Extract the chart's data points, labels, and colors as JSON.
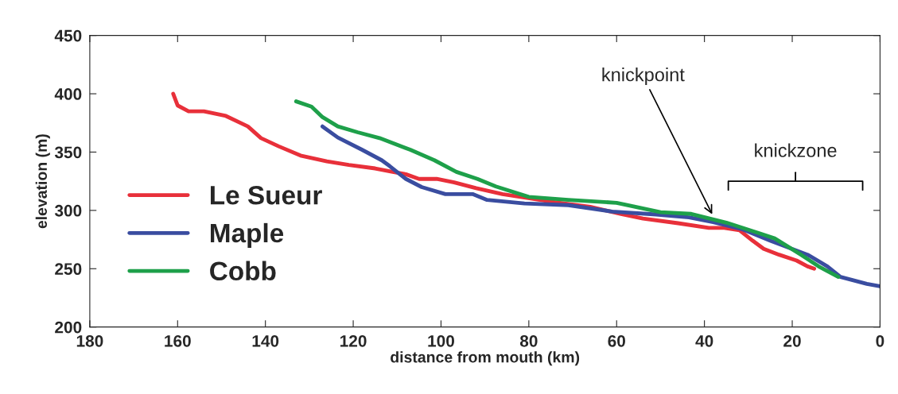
{
  "chart_data": {
    "type": "line",
    "xlabel": "distance from mouth (km)",
    "ylabel": "elevation (m)",
    "xlim": [
      180,
      0
    ],
    "ylim": [
      200,
      450
    ],
    "xticks": [
      180,
      160,
      140,
      120,
      100,
      80,
      60,
      40,
      20,
      0
    ],
    "yticks": [
      200,
      250,
      300,
      350,
      400,
      450
    ],
    "grid": false,
    "legend": "bottom left",
    "marker": "none",
    "line_style": "solid",
    "series": [
      {
        "name": "Le Sueur",
        "color": "#e8303a",
        "x": [
          161,
          160,
          157.5,
          154,
          149,
          144,
          141,
          137,
          132,
          126,
          121,
          115,
          111,
          108,
          105,
          101,
          97,
          92,
          86,
          81,
          74,
          66,
          59,
          54,
          46,
          39,
          35.5,
          32,
          29,
          26.5,
          23,
          19,
          16.5,
          15
        ],
        "values": [
          400,
          390,
          385,
          385,
          381,
          372,
          362,
          355,
          347,
          342,
          339,
          336,
          333,
          331,
          327,
          327,
          324,
          319,
          314,
          311,
          307,
          303,
          297,
          293,
          289,
          285,
          285,
          283,
          274,
          267,
          262,
          257,
          252,
          250
        ]
      },
      {
        "name": "Maple",
        "color": "#3a4da0",
        "x": [
          127,
          123.5,
          118,
          113.5,
          111.7,
          108,
          104.4,
          99,
          92.8,
          89.5,
          81,
          71,
          61,
          51,
          43.5,
          38,
          31.5,
          25,
          16.5,
          12,
          9,
          3,
          0
        ],
        "values": [
          372,
          362.5,
          352,
          343,
          338,
          327,
          320,
          314,
          314,
          309,
          306,
          304.5,
          299,
          296.5,
          294,
          290,
          284,
          274,
          262,
          252,
          243,
          237,
          235
        ]
      },
      {
        "name": "Cobb",
        "color": "#1ea04a",
        "x": [
          133,
          129.5,
          127,
          123.5,
          119,
          114,
          107,
          101.5,
          96.5,
          91.7,
          87.5,
          80,
          71,
          60,
          50,
          43,
          35,
          28,
          24,
          18,
          14,
          9.5
        ],
        "values": [
          393.5,
          389,
          380,
          372,
          367,
          362,
          352,
          343,
          333,
          327,
          320.5,
          311.6,
          309,
          306.5,
          298.5,
          297,
          289.5,
          281,
          276,
          262,
          252,
          243
        ]
      }
    ],
    "annotations": [
      {
        "text": "knickpoint",
        "x": 38,
        "y": 295
      },
      "knickzone"
    ]
  }
}
